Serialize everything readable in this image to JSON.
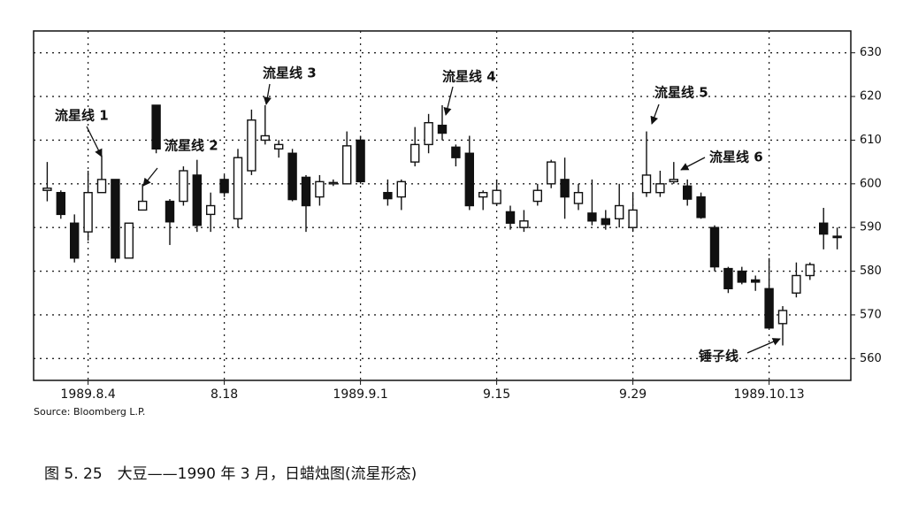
{
  "chart_data": {
    "type": "candlestick",
    "categories": [
      null,
      null,
      null,
      "1989.8.4",
      null,
      null,
      null,
      null,
      null,
      null,
      null,
      null,
      null,
      "8.18",
      null,
      null,
      null,
      null,
      null,
      null,
      null,
      null,
      null,
      "1989.9.1",
      null,
      null,
      null,
      null,
      null,
      null,
      null,
      null,
      null,
      "9.15",
      null,
      null,
      null,
      null,
      null,
      null,
      null,
      null,
      null,
      "9.29",
      null,
      null,
      null,
      null,
      null,
      null,
      null,
      null,
      null,
      "1989.10.13",
      null,
      null,
      null,
      null,
      null
    ],
    "open": [
      598.5,
      598,
      591,
      589,
      598,
      601,
      583,
      594,
      618,
      596,
      596,
      602,
      593,
      601,
      592,
      603,
      610,
      608,
      607,
      601.5,
      597,
      600,
      600,
      610,
      null,
      598,
      597,
      605,
      609,
      613.4,
      608.4,
      607,
      597,
      595.5,
      593.6,
      590,
      596,
      600,
      601,
      595.5,
      593.3,
      592,
      592,
      590,
      598,
      598,
      600.5,
      599.5,
      597,
      590,
      580.6,
      580,
      578,
      576,
      568,
      575,
      579,
      591,
      588
    ],
    "high": [
      605,
      598.5,
      593,
      603,
      606.5,
      601,
      591,
      600,
      618,
      596.5,
      604,
      605.5,
      598,
      602,
      608,
      617,
      618,
      610,
      608,
      602,
      602,
      601,
      612,
      611,
      null,
      601,
      601,
      613,
      616,
      618,
      609,
      611,
      598.5,
      601,
      595,
      594,
      600,
      605.5,
      606,
      600,
      601,
      594,
      600,
      598,
      612,
      603,
      605,
      601,
      598,
      590.5,
      581,
      581,
      579,
      583,
      572,
      582,
      582,
      594.5,
      590
    ],
    "low": [
      596,
      592,
      582,
      587,
      598,
      582,
      583,
      594,
      607,
      586,
      595,
      589,
      589,
      597,
      590,
      602,
      609,
      606,
      596,
      589,
      595,
      599.5,
      600,
      600,
      null,
      595,
      594,
      604,
      607,
      610,
      604,
      594,
      594,
      595,
      589.5,
      589,
      595,
      599,
      592,
      594,
      590.5,
      589.5,
      590,
      589,
      597,
      597,
      600,
      595,
      592,
      580,
      575,
      577,
      575.5,
      567,
      563,
      574,
      578,
      585,
      585
    ],
    "close": [
      599,
      593,
      583,
      598,
      601,
      583,
      591,
      596,
      608,
      591.3,
      603,
      590.5,
      595,
      598,
      606,
      614.6,
      611,
      609,
      596.4,
      595,
      600.5,
      600.3,
      608.7,
      600.5,
      null,
      596.6,
      600.5,
      609,
      614,
      611.6,
      606,
      595,
      598,
      598.5,
      591,
      591.5,
      598.5,
      605,
      597,
      598,
      591.5,
      590.7,
      595,
      594,
      602,
      600,
      601,
      596.5,
      592.3,
      581,
      576,
      577.5,
      577.5,
      567,
      571,
      579,
      581.5,
      588.5,
      587.8
    ],
    "ylim": [
      555,
      635
    ],
    "yticks": [
      560,
      570,
      580,
      590,
      600,
      610,
      620,
      630
    ],
    "grid": true,
    "up_color": "#ffffff",
    "down_color": "#111111",
    "annotations": [
      "流星线 1",
      "流星线 2",
      "流星线 3",
      "流星线 4",
      "流星线 5",
      "流星线 6",
      "锤子线"
    ],
    "source": "Source: Bloomberg L.P.",
    "caption": "图 5. 25　大豆——1990 年 3 月，日蜡烛图(流星形态)"
  }
}
